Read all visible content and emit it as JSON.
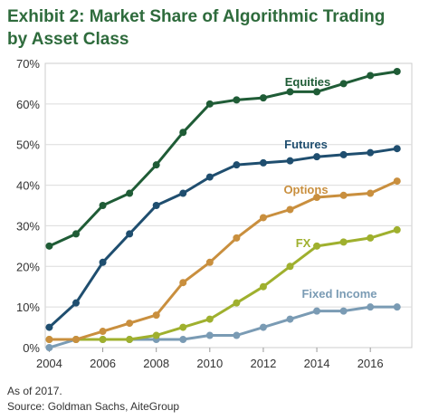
{
  "title_line1": "Exhibit 2: Market Share of Algorithmic Trading",
  "title_line2": "by Asset Class",
  "note": "As of 2017.",
  "source": "Source: Goldman Sachs, AiteGroup",
  "chart_data": {
    "type": "line",
    "x": [
      2004,
      2005,
      2006,
      2007,
      2008,
      2009,
      2010,
      2011,
      2012,
      2013,
      2014,
      2015,
      2016,
      2017
    ],
    "xticks": [
      2004,
      2006,
      2008,
      2010,
      2012,
      2014,
      2016
    ],
    "xtick_labels": [
      "2004",
      "2006",
      "2008",
      "2010",
      "2012",
      "2014",
      "2016"
    ],
    "xlim": [
      2003.85,
      2017.55
    ],
    "ylim": [
      0,
      70
    ],
    "yticks": [
      0,
      10,
      20,
      30,
      40,
      50,
      60,
      70
    ],
    "ytick_labels": [
      "0%",
      "10%",
      "20%",
      "30%",
      "40%",
      "50%",
      "60%",
      "70%"
    ],
    "grid": true,
    "legend": "inline labels",
    "series": [
      {
        "name": "Equities",
        "color": "#1f5c36",
        "values": [
          25,
          28,
          35,
          38,
          45,
          53,
          60,
          61,
          61.5,
          63,
          63,
          65,
          67,
          68
        ]
      },
      {
        "name": "Futures",
        "color": "#1f4e6f",
        "values": [
          5,
          11,
          21,
          28,
          35,
          38,
          42,
          45,
          45.5,
          46,
          47,
          47.5,
          48,
          49
        ]
      },
      {
        "name": "Options",
        "color": "#c98f3e",
        "values": [
          2,
          2,
          4,
          6,
          8,
          16,
          21,
          27,
          32,
          34,
          37,
          37.5,
          38,
          41
        ]
      },
      {
        "name": "FX",
        "color": "#9fb02e",
        "values": [
          2,
          2,
          2,
          2,
          3,
          5,
          7,
          11,
          15,
          20,
          25,
          26,
          27,
          29
        ]
      },
      {
        "name": "Fixed Income",
        "color": "#7a9bb4",
        "values": [
          0,
          2,
          2,
          2,
          2,
          2,
          3,
          3,
          5,
          7,
          9,
          9,
          10,
          10
        ]
      }
    ]
  }
}
